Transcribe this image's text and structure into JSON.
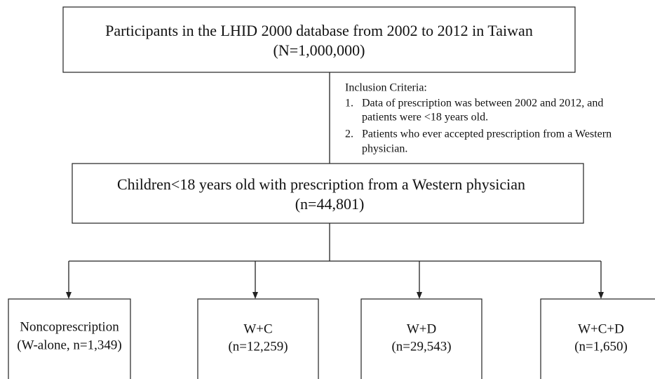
{
  "top_box": {
    "lines": [
      "Participants in the LHID 2000 database from 2002 to 2012 in Taiwan",
      "(N=1,000,000)"
    ]
  },
  "inclusion_criteria": {
    "title": "Inclusion Criteria:",
    "items": [
      {
        "number": "1.",
        "lines": [
          "Data of prescription was between 2002 and 2012, and",
          "patients were <18 years old."
        ]
      },
      {
        "number": "2.",
        "lines": [
          "Patients who ever accepted prescription from a Western",
          "physician."
        ]
      }
    ]
  },
  "middle_box": {
    "lines": [
      "Children<18 years old with prescription from a Western physician",
      "(n=44,801)"
    ]
  },
  "groups": [
    {
      "lines": [
        "Noncoprescription",
        "(W-alone, n=1,349)"
      ]
    },
    {
      "lines": [
        "W+C",
        "(n=12,259)"
      ]
    },
    {
      "lines": [
        "W+D",
        "(n=29,543)"
      ]
    },
    {
      "lines": [
        "W+C+D",
        "(n=1,650)"
      ]
    }
  ]
}
